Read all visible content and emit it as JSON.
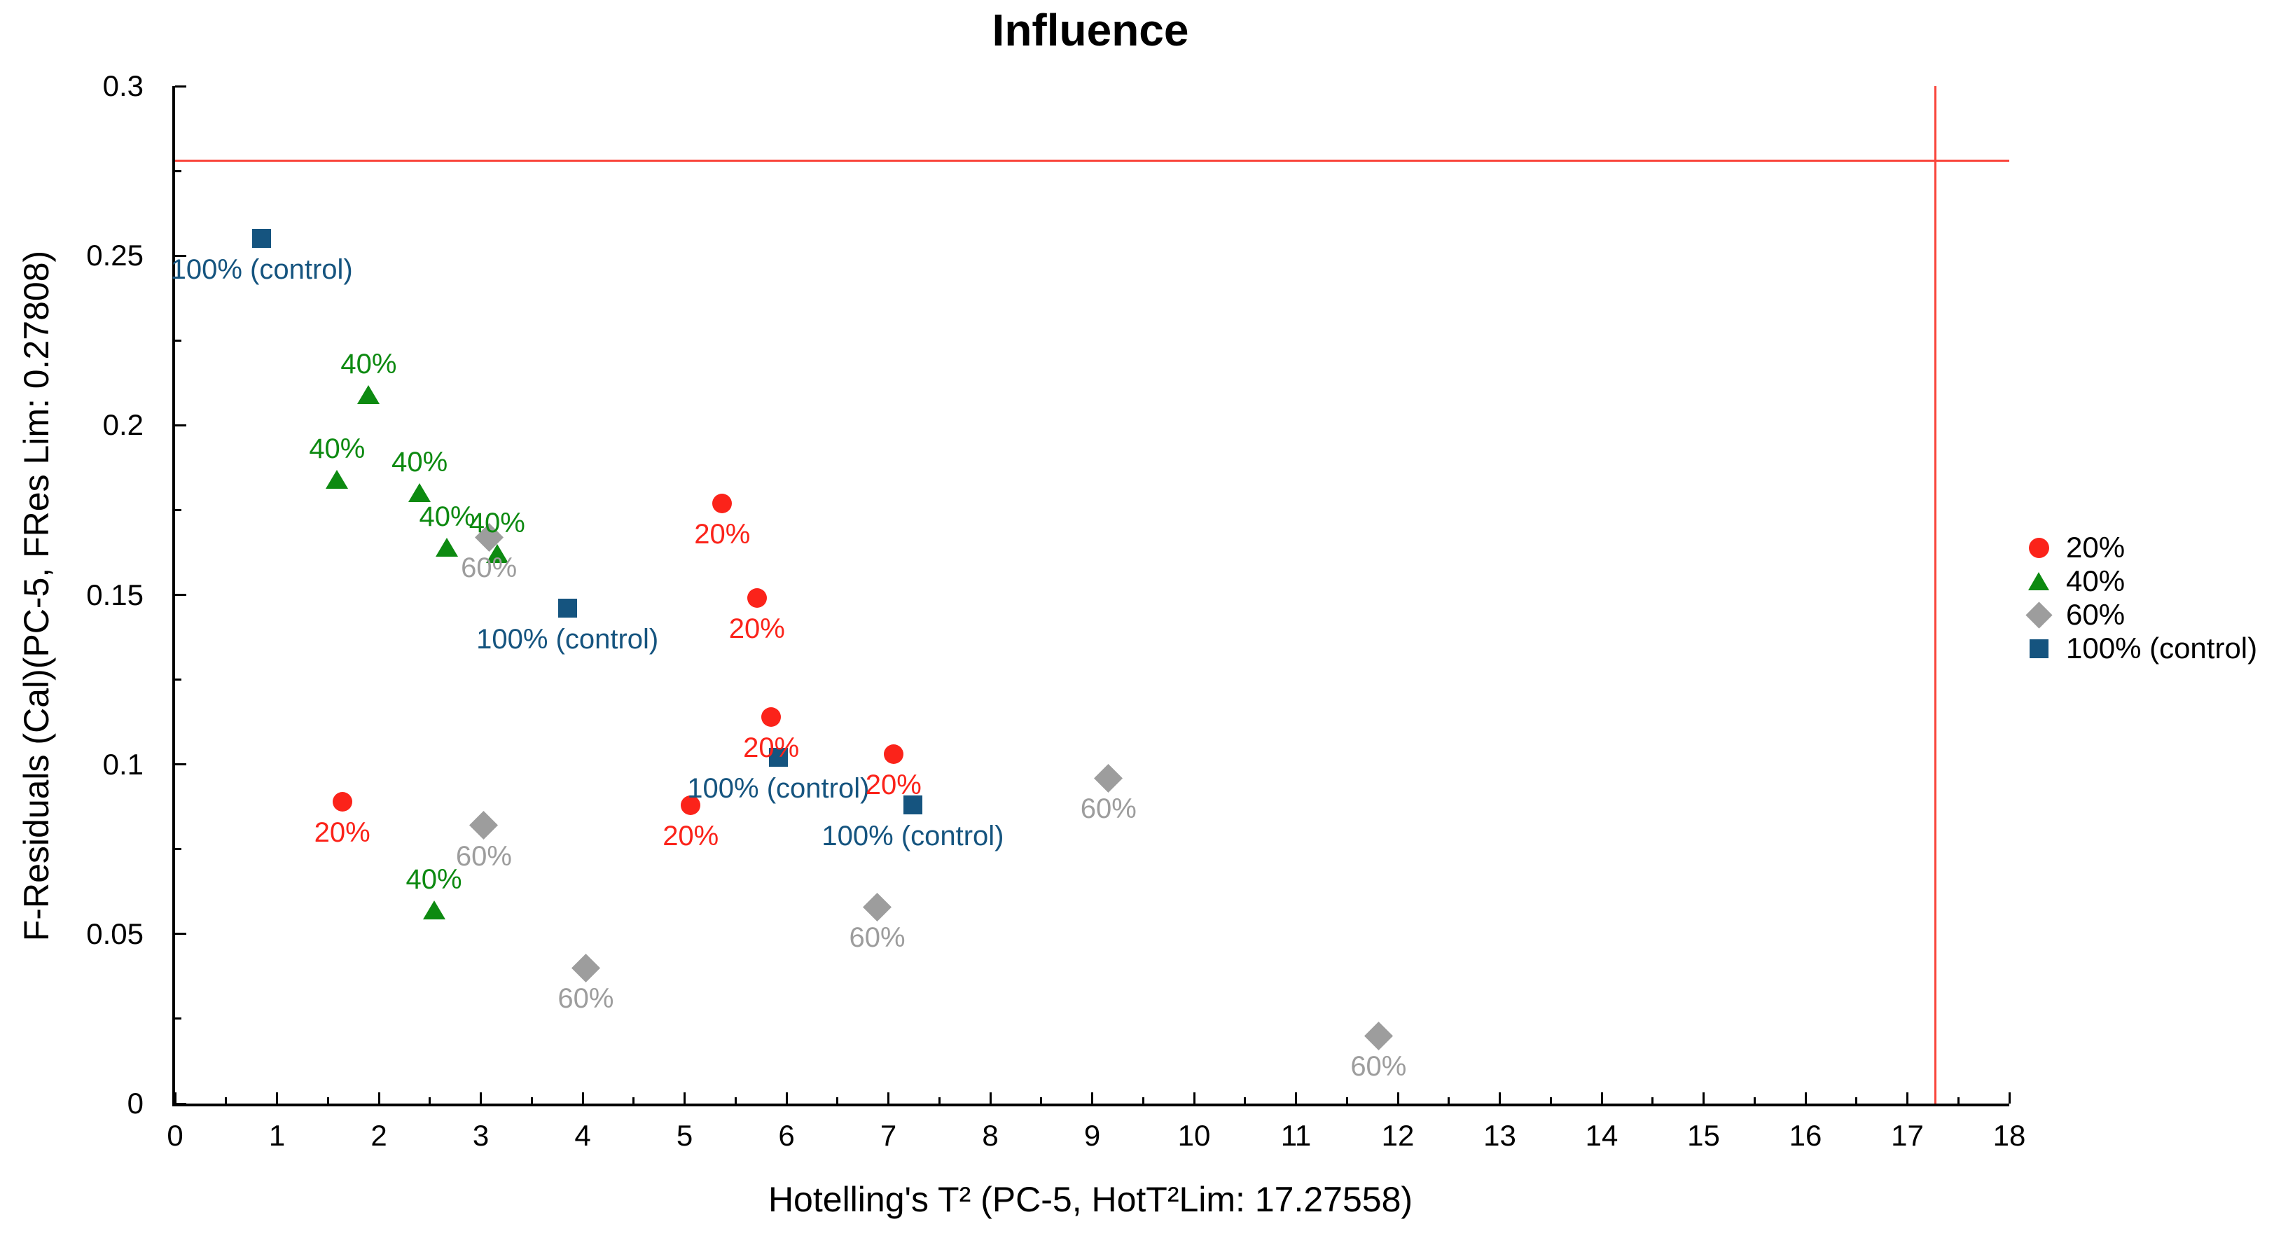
{
  "chart_data": {
    "type": "scatter",
    "title": "Influence",
    "xlabel": "Hotelling's T² (PC-5, HotT²Lim: 17.27558)",
    "ylabel": "F-Residuals (Cal)(PC-5, FRes Lim: 0.27808)",
    "xlim": [
      0,
      18
    ],
    "ylim": [
      0,
      0.3
    ],
    "x_major_ticks": [
      "0",
      "1",
      "2",
      "3",
      "4",
      "5",
      "6",
      "7",
      "8",
      "9",
      "10",
      "11",
      "12",
      "13",
      "14",
      "15",
      "16",
      "17",
      "18"
    ],
    "y_major_ticks": [
      "0",
      "0.05",
      "0.1",
      "0.15",
      "0.2",
      "0.25",
      "0.3"
    ],
    "x_major_step": 1,
    "x_minor_step": 0.5,
    "y_major_step": 0.05,
    "y_minor_step": 0.025,
    "grid": false,
    "legend_position": "right",
    "thresholds": {
      "hotelling_t2_limit": 17.27558,
      "f_residuals_limit": 0.27808,
      "line_color": "#f9453b"
    },
    "series": [
      {
        "name": "20%",
        "marker": "circle",
        "color": "#fb231a",
        "label_side": "below",
        "points": [
          [
            5.37,
            0.177
          ],
          [
            5.71,
            0.149
          ],
          [
            5.85,
            0.114
          ],
          [
            7.05,
            0.103
          ],
          [
            1.64,
            0.089
          ],
          [
            5.06,
            0.088
          ]
        ]
      },
      {
        "name": "40%",
        "marker": "triangle",
        "color": "#0d8a11",
        "label_side": "above",
        "points": [
          [
            1.9,
            0.209
          ],
          [
            1.59,
            0.184
          ],
          [
            2.4,
            0.18
          ],
          [
            2.67,
            0.164
          ],
          [
            3.16,
            0.162
          ],
          [
            2.54,
            0.057
          ]
        ]
      },
      {
        "name": "60%",
        "marker": "diamond",
        "color": "#9d9d9d",
        "label_side": "below",
        "points": [
          [
            3.08,
            0.167
          ],
          [
            3.03,
            0.082
          ],
          [
            4.03,
            0.04
          ],
          [
            6.89,
            0.058
          ],
          [
            9.16,
            0.096
          ],
          [
            11.81,
            0.02
          ]
        ]
      },
      {
        "name": "100% (control)",
        "marker": "square",
        "color": "#15547f",
        "label_side": "below",
        "points": [
          [
            0.85,
            0.255
          ],
          [
            3.85,
            0.146
          ],
          [
            5.92,
            0.102
          ],
          [
            7.24,
            0.088
          ]
        ]
      }
    ]
  },
  "axis_color": "#000000",
  "background_color": "#ffffff"
}
